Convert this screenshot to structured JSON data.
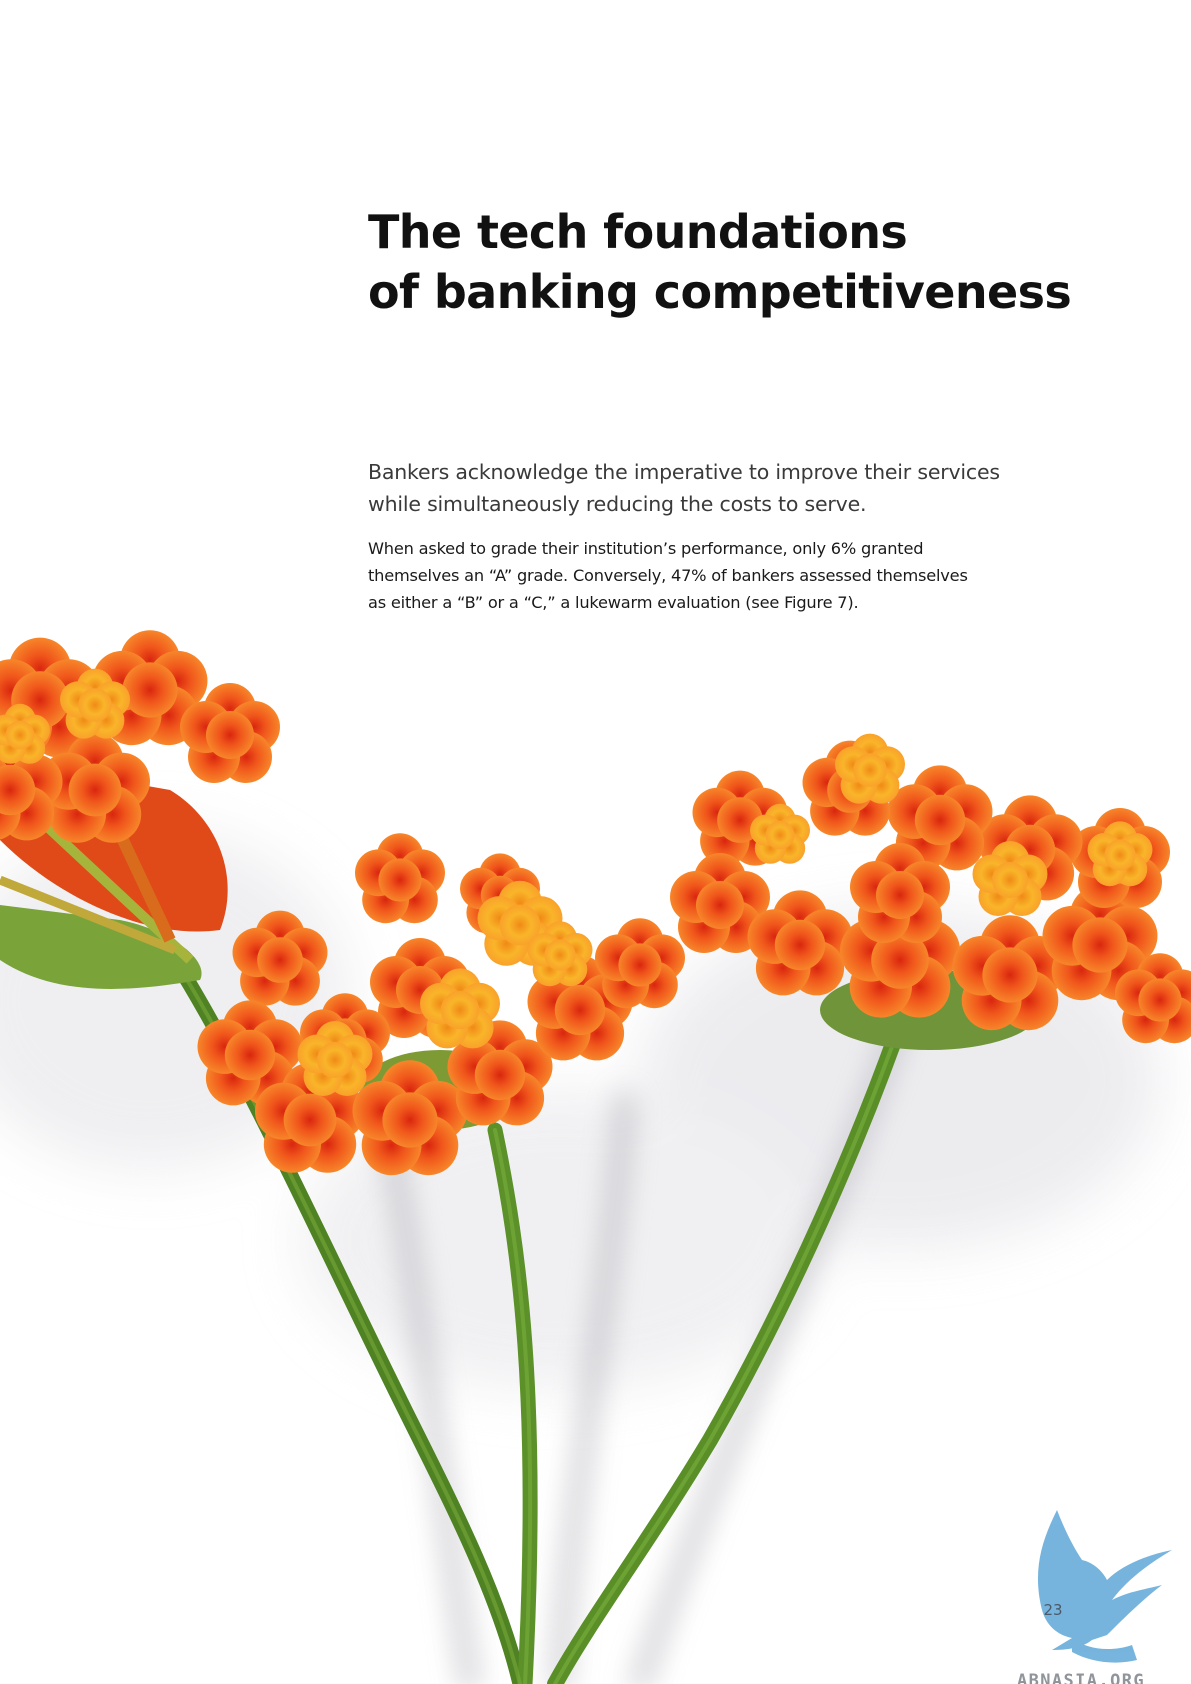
{
  "heading": {
    "line1": "The tech foundations",
    "line2": "of banking competitiveness"
  },
  "lead": {
    "line1": "Bankers acknowledge the imperative to improve their services",
    "line2": "while simultaneously reducing the costs to serve."
  },
  "body": {
    "line1": "When asked to grade their institution’s performance, only 6% granted",
    "line2": "themselves an “A” grade. Conversely, 47% of bankers assessed themselves",
    "line3": "as either a “B” or a “C,” a lukewarm evaluation (see Figure 7)."
  },
  "footer": {
    "page_number": "23",
    "watermark_text": "ABNASIA.ORG"
  },
  "colors": {
    "petal_orange": "#f26b1d",
    "petal_red": "#e23a16",
    "petal_yellow": "#f7b320",
    "stem_green": "#5a8c2a",
    "watermark_blue": "#5fa8d8"
  }
}
